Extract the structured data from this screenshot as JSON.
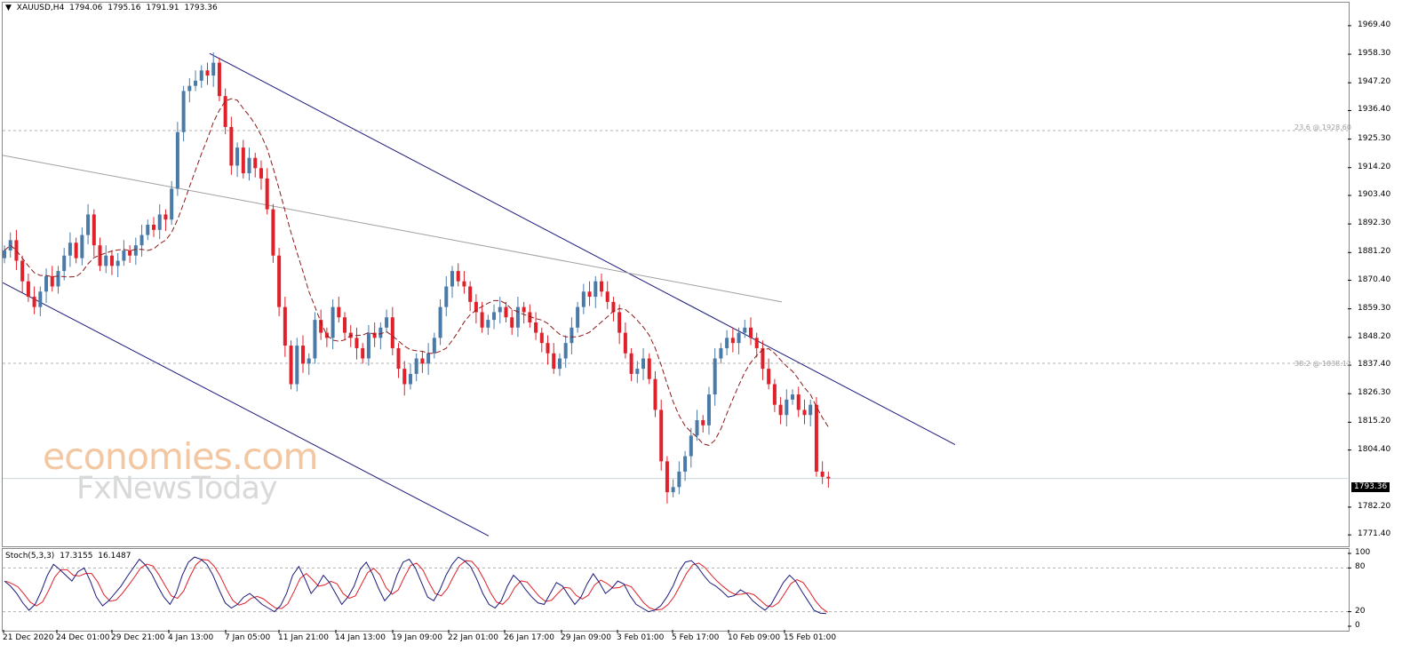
{
  "header": {
    "arrow": "▼",
    "symbol": "XAUUSD,H4",
    "open": "1794.06",
    "high": "1795.16",
    "low": "1791.91",
    "close": "1793.36"
  },
  "oscillator_header": {
    "name": "Stoch(5,3,3)",
    "k": "17.3155",
    "d": "16.1487"
  },
  "current_price_label": "1793.36",
  "fib_labels": {
    "f236": "23.6 @ 1928.60",
    "f382": "38.2 @ 1838.12"
  },
  "watermark": {
    "line1": "economies.com",
    "line2": "FxNewsToday"
  },
  "colors": {
    "bull": "#4a7aa8",
    "bear": "#e0202a",
    "ma": "#8b1a1a",
    "channel": "#1a1a7a",
    "trend_gray": "#a0a0a0",
    "stoch_k": "#1a1a7a",
    "stoch_d": "#e0202a"
  },
  "chart_data": {
    "type": "candlestick",
    "price_axis_ticks": [
      "1969.40",
      "1958.30",
      "1947.20",
      "1936.40",
      "1925.30",
      "1914.20",
      "1903.40",
      "1892.30",
      "1881.20",
      "1870.40",
      "1859.30",
      "1848.20",
      "1837.40",
      "1826.30",
      "1815.20",
      "1804.40",
      "1793.36",
      "1782.20",
      "1771.40"
    ],
    "oscillator_axis_ticks": [
      "100",
      "80",
      "20",
      "0"
    ],
    "time_axis_labels": [
      "21 Dec 2020",
      "24 Dec 01:00",
      "29 Dec 21:00",
      "4 Jan 13:00",
      "7 Jan 05:00",
      "11 Jan 21:00",
      "14 Jan 13:00",
      "19 Jan 09:00",
      "22 Jan 01:00",
      "26 Jan 17:00",
      "29 Jan 09:00",
      "3 Feb 01:00",
      "5 Feb 17:00",
      "10 Feb 09:00",
      "15 Feb 01:00"
    ],
    "ylim": [
      1768,
      1978
    ],
    "fib_levels": [
      1928.6,
      1838.12
    ],
    "last_price": 1793.36,
    "closes": [
      1882,
      1886,
      1878,
      1870,
      1864,
      1860,
      1866,
      1872,
      1868,
      1874,
      1880,
      1885,
      1879,
      1888,
      1896,
      1884,
      1876,
      1880,
      1876,
      1878,
      1882,
      1880,
      1884,
      1888,
      1892,
      1890,
      1896,
      1894,
      1906,
      1928,
      1944,
      1946,
      1948,
      1952,
      1950,
      1955,
      1942,
      1930,
      1915,
      1922,
      1912,
      1918,
      1914,
      1910,
      1898,
      1880,
      1860,
      1845,
      1830,
      1845,
      1838,
      1840,
      1855,
      1850,
      1848,
      1860,
      1856,
      1850,
      1848,
      1844,
      1840,
      1850,
      1848,
      1852,
      1856,
      1844,
      1836,
      1830,
      1834,
      1840,
      1838,
      1842,
      1848,
      1860,
      1868,
      1874,
      1870,
      1868,
      1862,
      1858,
      1852,
      1855,
      1858,
      1860,
      1856,
      1852,
      1860,
      1858,
      1854,
      1850,
      1846,
      1842,
      1836,
      1840,
      1846,
      1852,
      1860,
      1866,
      1864,
      1870,
      1866,
      1862,
      1858,
      1850,
      1842,
      1834,
      1836,
      1840,
      1832,
      1820,
      1800,
      1788,
      1790,
      1796,
      1802,
      1810,
      1816,
      1814,
      1826,
      1840,
      1844,
      1848,
      1846,
      1850,
      1852,
      1848,
      1844,
      1836,
      1830,
      1822,
      1818,
      1824,
      1826,
      1820,
      1818,
      1822,
      1796,
      1794,
      1793.36
    ],
    "ma_period": 50,
    "stoch_k": [
      62,
      55,
      45,
      32,
      22,
      30,
      48,
      70,
      85,
      78,
      70,
      62,
      75,
      80,
      62,
      40,
      28,
      35,
      45,
      55,
      68,
      80,
      92,
      84,
      72,
      55,
      40,
      30,
      45,
      70,
      88,
      95,
      92,
      85,
      70,
      50,
      32,
      25,
      30,
      40,
      45,
      38,
      30,
      25,
      20,
      28,
      45,
      70,
      82,
      65,
      45,
      55,
      70,
      60,
      45,
      30,
      40,
      55,
      78,
      88,
      72,
      52,
      35,
      45,
      70,
      88,
      92,
      80,
      60,
      40,
      35,
      50,
      70,
      85,
      95,
      90,
      82,
      65,
      45,
      30,
      25,
      35,
      55,
      70,
      62,
      50,
      40,
      32,
      30,
      45,
      60,
      55,
      42,
      30,
      40,
      58,
      72,
      60,
      45,
      52,
      62,
      58,
      42,
      30,
      25,
      20,
      22,
      28,
      40,
      55,
      75,
      88,
      90,
      82,
      70,
      60,
      55,
      48,
      40,
      42,
      50,
      45,
      35,
      28,
      22,
      30,
      45,
      60,
      70,
      62,
      48,
      35,
      22,
      18,
      17.3155
    ]
  }
}
